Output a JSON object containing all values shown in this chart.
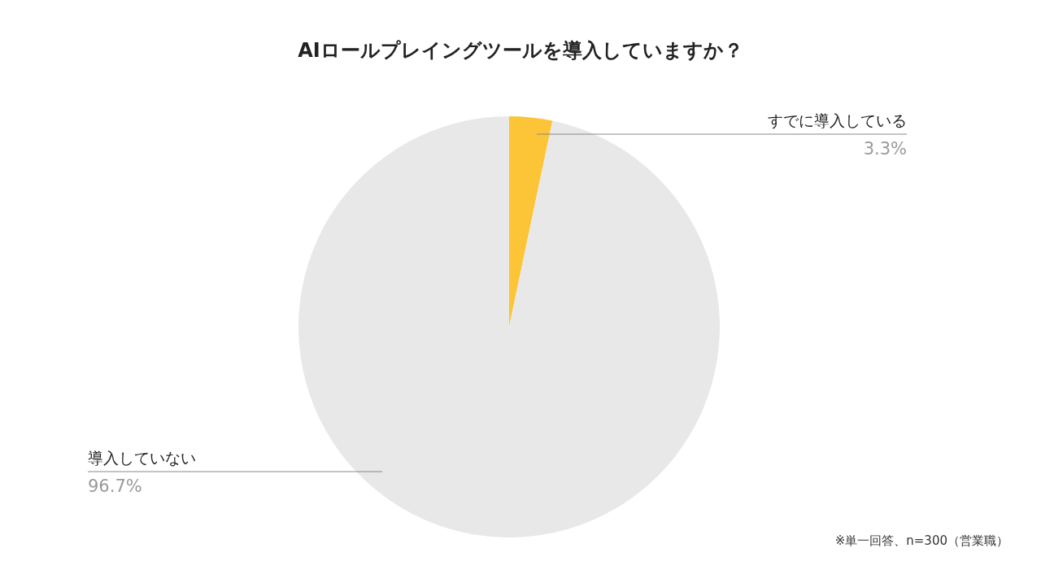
{
  "chart_data": {
    "type": "pie",
    "title": "AIロールプレイングツールを導入していますか？",
    "categories": [
      "すでに導入している",
      "導入していない"
    ],
    "values": [
      3.3,
      96.7
    ],
    "colors": [
      "#fcc537",
      "#e8e8e8"
    ],
    "value_labels": [
      "3.3%",
      "96.7%"
    ],
    "legend": false,
    "annotations": [
      "※単一回答、n=300（営業職）"
    ]
  }
}
